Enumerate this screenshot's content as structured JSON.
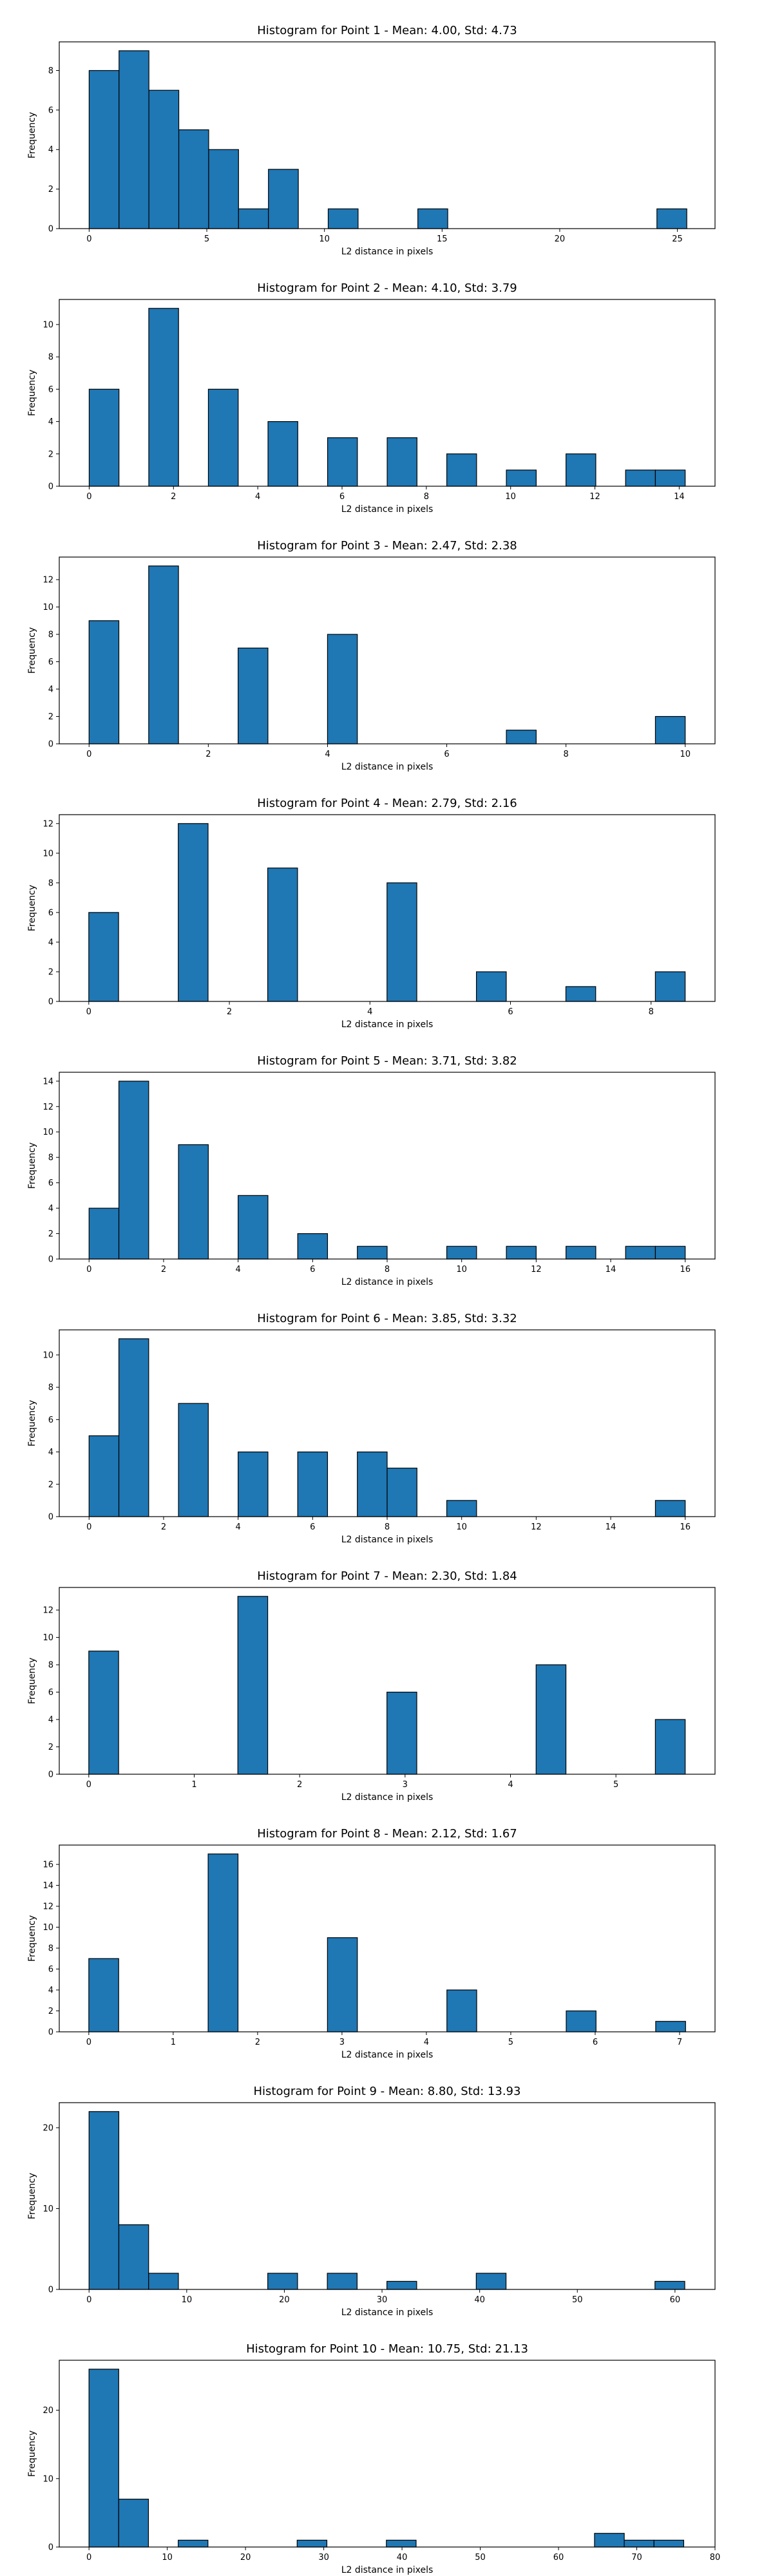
{
  "chart_data": [
    {
      "type": "bar",
      "title": "Histogram for Point 1 - Mean: 4.00, Std: 4.73",
      "xlabel": "L2 distance in pixels",
      "ylabel": "Frequency",
      "xlim": [
        -1.27,
        26.6
      ],
      "ylim": [
        0,
        9.45
      ],
      "xticks": [
        0,
        5,
        10,
        15,
        20,
        25
      ],
      "yticks": [
        0,
        2,
        4,
        6,
        8
      ],
      "bins": [
        {
          "x0": 0.0,
          "x1": 1.27,
          "count": 8
        },
        {
          "x0": 1.27,
          "x1": 2.54,
          "count": 9
        },
        {
          "x0": 2.54,
          "x1": 3.81,
          "count": 7
        },
        {
          "x0": 3.81,
          "x1": 5.08,
          "count": 5
        },
        {
          "x0": 5.08,
          "x1": 6.35,
          "count": 4
        },
        {
          "x0": 6.35,
          "x1": 7.62,
          "count": 1
        },
        {
          "x0": 7.62,
          "x1": 8.89,
          "count": 3
        },
        {
          "x0": 10.16,
          "x1": 11.43,
          "count": 1
        },
        {
          "x0": 13.97,
          "x1": 15.24,
          "count": 1
        },
        {
          "x0": 24.13,
          "x1": 25.4,
          "count": 1
        }
      ]
    },
    {
      "type": "bar",
      "title": "Histogram for Point 2 - Mean: 4.10, Std: 3.79",
      "xlabel": "L2 distance in pixels",
      "ylabel": "Frequency",
      "xlim": [
        -0.71,
        14.85
      ],
      "ylim": [
        0,
        11.55
      ],
      "xticks": [
        0,
        2,
        4,
        6,
        8,
        10,
        12,
        14
      ],
      "yticks": [
        0,
        2,
        4,
        6,
        8,
        10
      ],
      "bins": [
        {
          "x0": 0.0,
          "x1": 0.707,
          "count": 6
        },
        {
          "x0": 1.414,
          "x1": 2.121,
          "count": 11
        },
        {
          "x0": 2.828,
          "x1": 3.536,
          "count": 6
        },
        {
          "x0": 4.243,
          "x1": 4.95,
          "count": 4
        },
        {
          "x0": 5.657,
          "x1": 6.364,
          "count": 3
        },
        {
          "x0": 7.071,
          "x1": 7.778,
          "count": 3
        },
        {
          "x0": 8.485,
          "x1": 9.192,
          "count": 2
        },
        {
          "x0": 9.899,
          "x1": 10.607,
          "count": 1
        },
        {
          "x0": 11.314,
          "x1": 12.021,
          "count": 2
        },
        {
          "x0": 12.728,
          "x1": 13.435,
          "count": 1
        },
        {
          "x0": 13.435,
          "x1": 14.142,
          "count": 1
        }
      ]
    },
    {
      "type": "bar",
      "title": "Histogram for Point 3 - Mean: 2.47, Std: 2.38",
      "xlabel": "L2 distance in pixels",
      "ylabel": "Frequency",
      "xlim": [
        -0.5,
        10.5
      ],
      "ylim": [
        0,
        13.65
      ],
      "xticks": [
        0,
        2,
        4,
        6,
        8,
        10
      ],
      "yticks": [
        0,
        2,
        4,
        6,
        8,
        10,
        12
      ],
      "bins": [
        {
          "x0": 0.0,
          "x1": 0.5,
          "count": 9
        },
        {
          "x0": 1.0,
          "x1": 1.5,
          "count": 13
        },
        {
          "x0": 2.5,
          "x1": 3.0,
          "count": 7
        },
        {
          "x0": 4.0,
          "x1": 4.5,
          "count": 8
        },
        {
          "x0": 7.0,
          "x1": 7.5,
          "count": 1
        },
        {
          "x0": 9.5,
          "x1": 10.0,
          "count": 2
        }
      ]
    },
    {
      "type": "bar",
      "title": "Histogram for Point 4 - Mean: 2.79, Std: 2.16",
      "xlabel": "L2 distance in pixels",
      "ylabel": "Frequency",
      "xlim": [
        -0.42,
        8.91
      ],
      "ylim": [
        0,
        12.6
      ],
      "xticks": [
        0,
        2,
        4,
        6,
        8
      ],
      "yticks": [
        0,
        2,
        4,
        6,
        8,
        10,
        12
      ],
      "bins": [
        {
          "x0": 0.0,
          "x1": 0.424,
          "count": 6
        },
        {
          "x0": 1.273,
          "x1": 1.697,
          "count": 12
        },
        {
          "x0": 2.546,
          "x1": 2.97,
          "count": 9
        },
        {
          "x0": 4.243,
          "x1": 4.667,
          "count": 8
        },
        {
          "x0": 5.515,
          "x1": 5.94,
          "count": 2
        },
        {
          "x0": 6.788,
          "x1": 7.212,
          "count": 1
        },
        {
          "x0": 8.061,
          "x1": 8.485,
          "count": 2
        }
      ]
    },
    {
      "type": "bar",
      "title": "Histogram for Point 5 - Mean: 3.71, Std: 3.82",
      "xlabel": "L2 distance in pixels",
      "ylabel": "Frequency",
      "xlim": [
        -0.8,
        16.8
      ],
      "ylim": [
        0,
        14.7
      ],
      "xticks": [
        0,
        2,
        4,
        6,
        8,
        10,
        12,
        14,
        16
      ],
      "yticks": [
        0,
        2,
        4,
        6,
        8,
        10,
        12,
        14
      ],
      "bins": [
        {
          "x0": 0.0,
          "x1": 0.8,
          "count": 4
        },
        {
          "x0": 0.8,
          "x1": 1.6,
          "count": 14
        },
        {
          "x0": 2.4,
          "x1": 3.2,
          "count": 9
        },
        {
          "x0": 4.0,
          "x1": 4.8,
          "count": 5
        },
        {
          "x0": 5.6,
          "x1": 6.4,
          "count": 2
        },
        {
          "x0": 7.2,
          "x1": 8.0,
          "count": 1
        },
        {
          "x0": 9.6,
          "x1": 10.4,
          "count": 1
        },
        {
          "x0": 11.2,
          "x1": 12.0,
          "count": 1
        },
        {
          "x0": 12.8,
          "x1": 13.6,
          "count": 1
        },
        {
          "x0": 14.4,
          "x1": 15.2,
          "count": 1
        },
        {
          "x0": 15.2,
          "x1": 16.0,
          "count": 1
        }
      ]
    },
    {
      "type": "bar",
      "title": "Histogram for Point 6 - Mean: 3.85, Std: 3.32",
      "xlabel": "L2 distance in pixels",
      "ylabel": "Frequency",
      "xlim": [
        -0.8,
        16.8
      ],
      "ylim": [
        0,
        11.55
      ],
      "xticks": [
        0,
        2,
        4,
        6,
        8,
        10,
        12,
        14,
        16
      ],
      "yticks": [
        0,
        2,
        4,
        6,
        8,
        10
      ],
      "bins": [
        {
          "x0": 0.0,
          "x1": 0.8,
          "count": 5
        },
        {
          "x0": 0.8,
          "x1": 1.6,
          "count": 11
        },
        {
          "x0": 2.4,
          "x1": 3.2,
          "count": 7
        },
        {
          "x0": 4.0,
          "x1": 4.8,
          "count": 4
        },
        {
          "x0": 5.6,
          "x1": 6.4,
          "count": 4
        },
        {
          "x0": 7.2,
          "x1": 8.0,
          "count": 4
        },
        {
          "x0": 8.0,
          "x1": 8.8,
          "count": 3
        },
        {
          "x0": 9.6,
          "x1": 10.4,
          "count": 1
        },
        {
          "x0": 15.2,
          "x1": 16.0,
          "count": 1
        }
      ]
    },
    {
      "type": "bar",
      "title": "Histogram for Point 7 - Mean: 2.30, Std: 1.84",
      "xlabel": "L2 distance in pixels",
      "ylabel": "Frequency",
      "xlim": [
        -0.28,
        5.94
      ],
      "ylim": [
        0,
        13.65
      ],
      "xticks": [
        0,
        1,
        2,
        3,
        4,
        5
      ],
      "yticks": [
        0,
        2,
        4,
        6,
        8,
        10,
        12
      ],
      "bins": [
        {
          "x0": 0.0,
          "x1": 0.283,
          "count": 9
        },
        {
          "x0": 1.414,
          "x1": 1.697,
          "count": 13
        },
        {
          "x0": 2.828,
          "x1": 3.111,
          "count": 6
        },
        {
          "x0": 4.243,
          "x1": 4.526,
          "count": 8
        },
        {
          "x0": 5.374,
          "x1": 5.657,
          "count": 4
        }
      ]
    },
    {
      "type": "bar",
      "title": "Histogram for Point 8 - Mean: 2.12, Std: 1.67",
      "xlabel": "L2 distance in pixels",
      "ylabel": "Frequency",
      "xlim": [
        -0.35,
        7.42
      ],
      "ylim": [
        0,
        17.85
      ],
      "xticks": [
        0,
        1,
        2,
        3,
        4,
        5,
        6,
        7
      ],
      "yticks": [
        0,
        2,
        4,
        6,
        8,
        10,
        12,
        14,
        16
      ],
      "bins": [
        {
          "x0": 0.0,
          "x1": 0.354,
          "count": 7
        },
        {
          "x0": 1.414,
          "x1": 1.768,
          "count": 17
        },
        {
          "x0": 2.828,
          "x1": 3.182,
          "count": 9
        },
        {
          "x0": 4.243,
          "x1": 4.596,
          "count": 4
        },
        {
          "x0": 5.657,
          "x1": 6.01,
          "count": 2
        },
        {
          "x0": 6.717,
          "x1": 7.071,
          "count": 1
        }
      ]
    },
    {
      "type": "bar",
      "title": "Histogram for Point 9 - Mean: 8.80, Std: 13.93",
      "xlabel": "L2 distance in pixels",
      "ylabel": "Frequency",
      "xlim": [
        -3.05,
        64.1
      ],
      "ylim": [
        0,
        23.1
      ],
      "xticks": [
        0,
        10,
        20,
        30,
        40,
        50,
        60
      ],
      "yticks": [
        0,
        10,
        20
      ],
      "bins": [
        {
          "x0": 0.0,
          "x1": 3.05,
          "count": 22
        },
        {
          "x0": 3.05,
          "x1": 6.1,
          "count": 8
        },
        {
          "x0": 6.1,
          "x1": 9.15,
          "count": 2
        },
        {
          "x0": 18.3,
          "x1": 21.35,
          "count": 2
        },
        {
          "x0": 24.4,
          "x1": 27.45,
          "count": 2
        },
        {
          "x0": 30.5,
          "x1": 33.55,
          "count": 1
        },
        {
          "x0": 39.65,
          "x1": 42.7,
          "count": 2
        },
        {
          "x0": 57.95,
          "x1": 61.0,
          "count": 1
        }
      ]
    },
    {
      "type": "bar",
      "title": "Histogram for Point 10 - Mean: 10.75, Std: 21.13",
      "xlabel": "L2 distance in pixels",
      "ylabel": "Frequency",
      "xlim": [
        -3.8,
        80.0
      ],
      "ylim": [
        0,
        27.3
      ],
      "xticks": [
        0,
        10,
        20,
        30,
        40,
        50,
        60,
        70,
        80
      ],
      "yticks": [
        0,
        10,
        20
      ],
      "bins": [
        {
          "x0": 0.0,
          "x1": 3.8,
          "count": 26
        },
        {
          "x0": 3.8,
          "x1": 7.6,
          "count": 7
        },
        {
          "x0": 11.4,
          "x1": 15.2,
          "count": 1
        },
        {
          "x0": 26.6,
          "x1": 30.4,
          "count": 1
        },
        {
          "x0": 38.0,
          "x1": 41.8,
          "count": 1
        },
        {
          "x0": 64.6,
          "x1": 68.4,
          "count": 2
        },
        {
          "x0": 68.4,
          "x1": 72.2,
          "count": 1
        },
        {
          "x0": 72.2,
          "x1": 76.0,
          "count": 1
        }
      ]
    }
  ],
  "colors": {
    "bar_fill": "#1f77b4",
    "bar_edge": "#000000",
    "axes": "#000000",
    "background": "#ffffff"
  }
}
